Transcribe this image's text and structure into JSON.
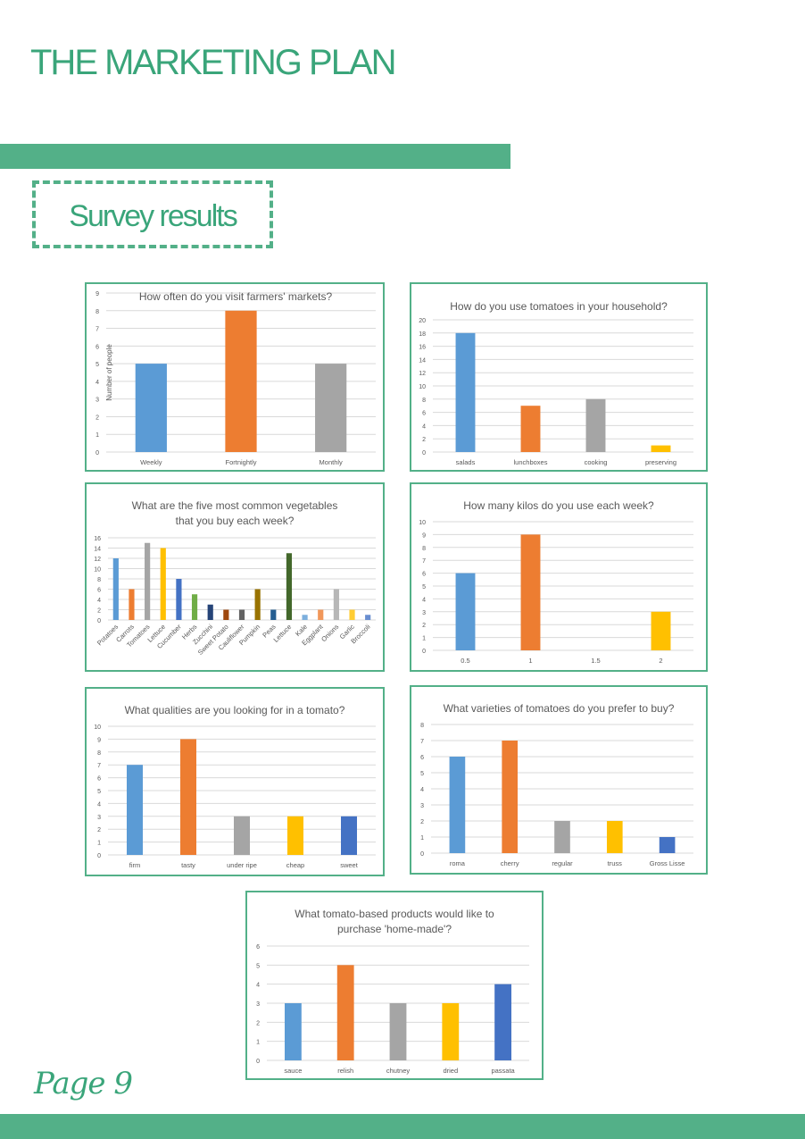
{
  "header": {
    "title": "THE MARKETING PLAN"
  },
  "section": {
    "title": "Survey results"
  },
  "footer": {
    "page": "Page 9"
  },
  "chart_data": [
    {
      "id": "visit-frequency",
      "type": "bar",
      "title": "How often do you visit farmers' markets?",
      "ylabel": "Number of people",
      "categories": [
        "Weekly",
        "Fortnightly",
        "Monthly"
      ],
      "values": [
        5,
        8,
        5
      ],
      "colors": [
        "#5b9bd5",
        "#ed7d31",
        "#a5a5a5"
      ],
      "ylim": [
        0,
        9
      ],
      "yticks": [
        0,
        1,
        2,
        3,
        4,
        5,
        6,
        7,
        8,
        9
      ],
      "grid": true
    },
    {
      "id": "tomato-uses",
      "type": "bar",
      "title": "How do you use tomatoes in your household?",
      "categories": [
        "salads",
        "lunchboxes",
        "cooking",
        "preserving"
      ],
      "values": [
        18,
        7,
        8,
        1
      ],
      "colors": [
        "#5b9bd5",
        "#ed7d31",
        "#a5a5a5",
        "#ffc000"
      ],
      "ylim": [
        0,
        20
      ],
      "yticks": [
        0,
        2,
        4,
        6,
        8,
        10,
        12,
        14,
        16,
        18,
        20
      ],
      "grid": true
    },
    {
      "id": "common-vegetables",
      "type": "bar",
      "title": "What are the five most common vegetables that you buy each week?",
      "title_lines": [
        "What are the five most common vegetables",
        "that you buy each week?"
      ],
      "categories": [
        "Potatoes",
        "Carrots",
        "Tomatoes",
        "Lettuce",
        "Cucumber",
        "Herbs",
        "Zucchini",
        "Sweet Potato",
        "Cauliflower",
        "Pumpkin",
        "Peas",
        "Lettuce",
        "Kale",
        "Eggplant",
        "Onions",
        "Garlic",
        "Broccoli"
      ],
      "values": [
        12,
        6,
        15,
        14,
        8,
        5,
        3,
        2,
        2,
        6,
        2,
        13,
        1,
        2,
        6,
        2,
        1
      ],
      "colors": [
        "#5b9bd5",
        "#ed7d31",
        "#a5a5a5",
        "#ffc000",
        "#4472c4",
        "#70ad47",
        "#264478",
        "#9e480e",
        "#636363",
        "#997300",
        "#255e91",
        "#43682b",
        "#7cafdd",
        "#f1975a",
        "#b7b7b7",
        "#ffcd33",
        "#698ed0"
      ],
      "ylim": [
        0,
        16
      ],
      "yticks": [
        0,
        2,
        4,
        6,
        8,
        10,
        12,
        14,
        16
      ],
      "grid": true
    },
    {
      "id": "kilos-per-week",
      "type": "bar",
      "title": "How many kilos do you use each week?",
      "categories": [
        "0.5",
        "1",
        "1.5",
        "2"
      ],
      "values": [
        6,
        9,
        0,
        3
      ],
      "colors": [
        "#5b9bd5",
        "#ed7d31",
        "#a5a5a5",
        "#ffc000"
      ],
      "ylim": [
        0,
        10
      ],
      "yticks": [
        0,
        1,
        2,
        3,
        4,
        5,
        6,
        7,
        8,
        9,
        10
      ],
      "grid": true
    },
    {
      "id": "tomato-qualities",
      "type": "bar",
      "title": "What qualities are you looking for in a tomato?",
      "categories": [
        "firm",
        "tasty",
        "under ripe",
        "cheap",
        "sweet"
      ],
      "values": [
        7,
        9,
        3,
        3,
        3
      ],
      "colors": [
        "#5b9bd5",
        "#ed7d31",
        "#a5a5a5",
        "#ffc000",
        "#4472c4"
      ],
      "ylim": [
        0,
        10
      ],
      "yticks": [
        0,
        1,
        2,
        3,
        4,
        5,
        6,
        7,
        8,
        9,
        10
      ],
      "grid": true
    },
    {
      "id": "tomato-varieties",
      "type": "bar",
      "title": "What varieties of tomatoes do you prefer to buy?",
      "categories": [
        "roma",
        "cherry",
        "regular",
        "truss",
        "Gross Lisse"
      ],
      "values": [
        6,
        7,
        2,
        2,
        1
      ],
      "colors": [
        "#5b9bd5",
        "#ed7d31",
        "#a5a5a5",
        "#ffc000",
        "#4472c4"
      ],
      "ylim": [
        0,
        8
      ],
      "yticks": [
        0,
        1,
        2,
        3,
        4,
        5,
        6,
        7,
        8
      ],
      "grid": true
    },
    {
      "id": "home-made-products",
      "type": "bar",
      "title": "What tomato-based products would like to purchase 'home-made'?",
      "title_lines": [
        "What tomato-based products would like to",
        "purchase 'home-made'?"
      ],
      "categories": [
        "sauce",
        "relish",
        "chutney",
        "dried",
        "passata"
      ],
      "values": [
        3,
        5,
        3,
        3,
        4
      ],
      "colors": [
        "#5b9bd5",
        "#ed7d31",
        "#a5a5a5",
        "#ffc000",
        "#4472c4"
      ],
      "ylim": [
        0,
        6
      ],
      "yticks": [
        0,
        1,
        2,
        3,
        4,
        5,
        6
      ],
      "grid": true
    }
  ]
}
